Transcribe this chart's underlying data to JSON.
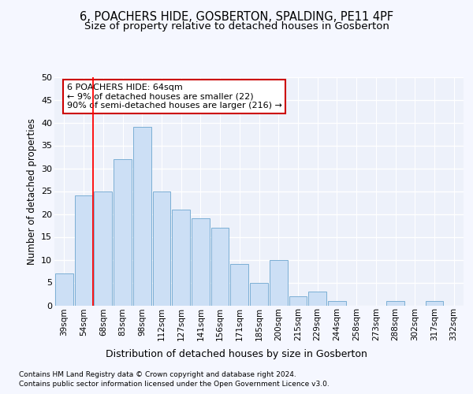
{
  "title1": "6, POACHERS HIDE, GOSBERTON, SPALDING, PE11 4PF",
  "title2": "Size of property relative to detached houses in Gosberton",
  "xlabel": "Distribution of detached houses by size in Gosberton",
  "ylabel": "Number of detached properties",
  "footer1": "Contains HM Land Registry data © Crown copyright and database right 2024.",
  "footer2": "Contains public sector information licensed under the Open Government Licence v3.0.",
  "categories": [
    "39sqm",
    "54sqm",
    "68sqm",
    "83sqm",
    "98sqm",
    "112sqm",
    "127sqm",
    "141sqm",
    "156sqm",
    "171sqm",
    "185sqm",
    "200sqm",
    "215sqm",
    "229sqm",
    "244sqm",
    "258sqm",
    "273sqm",
    "288sqm",
    "302sqm",
    "317sqm",
    "332sqm"
  ],
  "values": [
    7,
    24,
    25,
    32,
    39,
    25,
    21,
    19,
    17,
    9,
    5,
    10,
    2,
    3,
    1,
    0,
    0,
    1,
    0,
    1,
    0
  ],
  "bar_color": "#ccdff5",
  "bar_edge_color": "#7bafd4",
  "red_line_x": 1.5,
  "annotation_line1": "6 POACHERS HIDE: 64sqm",
  "annotation_line2": "← 9% of detached houses are smaller (22)",
  "annotation_line3": "90% of semi-detached houses are larger (216) →",
  "ylim": [
    0,
    50
  ],
  "yticks": [
    0,
    5,
    10,
    15,
    20,
    25,
    30,
    35,
    40,
    45,
    50
  ],
  "background_color": "#f5f7ff",
  "plot_bg_color": "#edf1fa",
  "grid_color": "#ffffff",
  "title1_fontsize": 10.5,
  "title2_fontsize": 9.5,
  "xlabel_fontsize": 9,
  "ylabel_fontsize": 8.5,
  "tick_fontsize": 7.5,
  "annotation_fontsize": 8,
  "footer_fontsize": 6.5,
  "annotation_box_color": "#ffffff",
  "annotation_box_edge": "#cc0000"
}
